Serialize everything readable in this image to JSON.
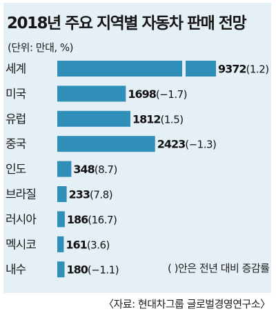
{
  "chart_data": {
    "type": "bar",
    "orientation": "horizontal",
    "title": "2018년 주요 지역별 자동차 판매 전망",
    "unit": "(단위: 만대, %)",
    "categories": [
      "세계",
      "미국",
      "유럽",
      "중국",
      "인도",
      "브라질",
      "러시아",
      "멕시코",
      "내수"
    ],
    "values": [
      9372,
      1698,
      1812,
      2423,
      348,
      233,
      186,
      161,
      180
    ],
    "change_labels": [
      "(1.2)",
      "(−1.7)",
      "(1.5)",
      "(−1.3)",
      "(8.7)",
      "(7.8)",
      "(16.7)",
      "(3.6)",
      "(−1.1)"
    ],
    "change_percent": [
      1.2,
      -1.7,
      1.5,
      -1.3,
      8.7,
      7.8,
      16.7,
      3.6,
      -1.1
    ],
    "axis_break_on": "세계",
    "note": "( )안은 전년 대비 증감률",
    "source": "〈자료: 현대차그룹 글로벌경영연구소〉",
    "colors": {
      "bar": "#2f8fb9",
      "background": "#e5eff6"
    }
  }
}
